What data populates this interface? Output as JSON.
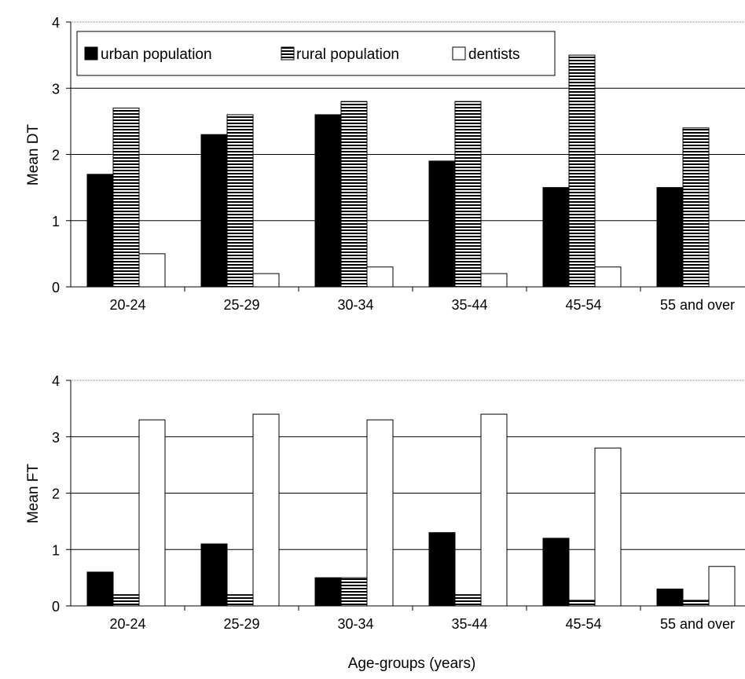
{
  "chart_data": [
    {
      "type": "bar",
      "title": "",
      "xlabel": "",
      "ylabel": "Mean DT",
      "ylim": [
        0,
        4
      ],
      "yticks": [
        "0",
        "1",
        "2",
        "3",
        "4"
      ],
      "categories": [
        "20-24",
        "25-29",
        "30-34",
        "35-44",
        "45-54",
        "55 and over"
      ],
      "grid": true,
      "legend": "top-left",
      "series": [
        {
          "name": "urban population",
          "values": [
            1.7,
            2.3,
            2.6,
            1.9,
            1.5,
            1.5
          ],
          "fill": "solid",
          "color": "#000000"
        },
        {
          "name": "rural population",
          "values": [
            2.7,
            2.6,
            2.8,
            2.8,
            3.5,
            2.4
          ],
          "fill": "hatched",
          "color": "#000000"
        },
        {
          "name": "dentists",
          "values": [
            0.5,
            0.2,
            0.3,
            0.2,
            0.3,
            0
          ],
          "fill": "empty",
          "color": "#ffffff"
        }
      ]
    },
    {
      "type": "bar",
      "title": "",
      "xlabel": "Age-groups (years)",
      "ylabel": "Mean FT",
      "ylim": [
        0,
        4
      ],
      "yticks": [
        "0",
        "1",
        "2",
        "3",
        "4"
      ],
      "categories": [
        "20-24",
        "25-29",
        "30-34",
        "35-44",
        "45-54",
        "55 and over"
      ],
      "grid": true,
      "series": [
        {
          "name": "urban population",
          "values": [
            0.6,
            1.1,
            0.5,
            1.3,
            1.2,
            0.3
          ],
          "fill": "solid",
          "color": "#000000"
        },
        {
          "name": "rural population",
          "values": [
            0.2,
            0.2,
            0.5,
            0.2,
            0.1,
            0.1
          ],
          "fill": "hatched",
          "color": "#000000"
        },
        {
          "name": "dentists",
          "values": [
            3.3,
            3.4,
            3.3,
            3.4,
            2.8,
            0.7
          ],
          "fill": "empty",
          "color": "#ffffff"
        }
      ]
    }
  ]
}
